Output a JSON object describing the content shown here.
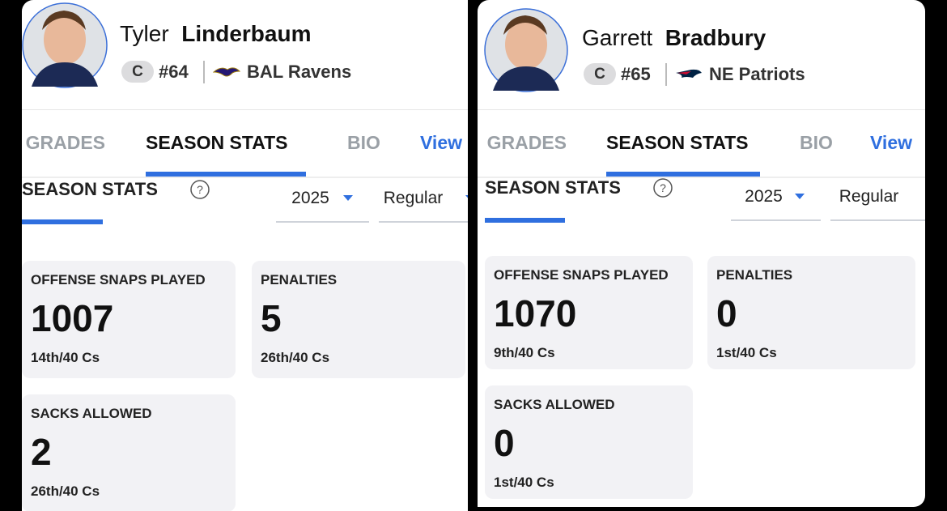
{
  "players": [
    {
      "first_name": "Tyler",
      "last_name": "Linderbaum",
      "position": "C",
      "number": "#64",
      "team": "BAL Ravens",
      "tabs": [
        "GRADES",
        "SEASON STATS",
        "BIO",
        "View"
      ],
      "section_title": "SEASON STATS",
      "year": "2025",
      "season_type": "Regular",
      "stats": [
        {
          "label": "OFFENSE SNAPS PLAYED",
          "value": 1007,
          "rank": "14th/40 Cs"
        },
        {
          "label": "PENALTIES",
          "value": 5,
          "rank": "26th/40 Cs"
        },
        {
          "label": "SACKS ALLOWED",
          "value": 2,
          "rank": "26th/40 Cs"
        }
      ]
    },
    {
      "first_name": "Garrett",
      "last_name": "Bradbury",
      "position": "C",
      "number": "#65",
      "team": "NE Patriots",
      "tabs": [
        "GRADES",
        "SEASON STATS",
        "BIO",
        "View"
      ],
      "section_title": "SEASON STATS",
      "year": "2025",
      "season_type": "Regular",
      "stats": [
        {
          "label": "OFFENSE SNAPS PLAYED",
          "value": 1070,
          "rank": "9th/40 Cs"
        },
        {
          "label": "PENALTIES",
          "value": 0,
          "rank": "1st/40 Cs"
        },
        {
          "label": "SACKS ALLOWED",
          "value": 0,
          "rank": "1st/40 Cs"
        }
      ]
    }
  ]
}
